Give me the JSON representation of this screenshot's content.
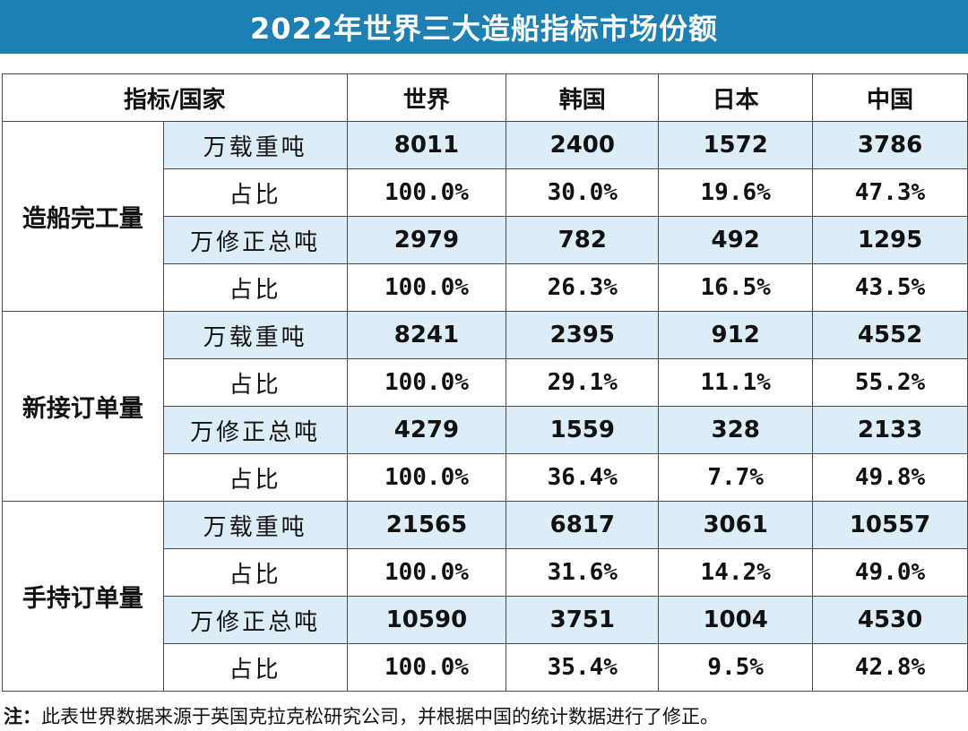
{
  "chart_data": {
    "type": "table",
    "title": "2022年世界三大造船指标市场份额",
    "corner_header": "指标/国家",
    "columns": [
      "世界",
      "韩国",
      "日本",
      "中国"
    ],
    "groups": [
      {
        "name": "造船完工量",
        "rows": [
          {
            "metric": "万载重吨",
            "values": [
              "8011",
              "2400",
              "1572",
              "3786"
            ]
          },
          {
            "metric": "占比",
            "values": [
              "100.0%",
              "30.0%",
              "19.6%",
              "47.3%"
            ]
          },
          {
            "metric": "万修正总吨",
            "values": [
              "2979",
              "782",
              "492",
              "1295"
            ]
          },
          {
            "metric": "占比",
            "values": [
              "100.0%",
              "26.3%",
              "16.5%",
              "43.5%"
            ]
          }
        ]
      },
      {
        "name": "新接订单量",
        "rows": [
          {
            "metric": "万载重吨",
            "values": [
              "8241",
              "2395",
              "912",
              "4552"
            ]
          },
          {
            "metric": "占比",
            "values": [
              "100.0%",
              "29.1%",
              "11.1%",
              "55.2%"
            ]
          },
          {
            "metric": "万修正总吨",
            "values": [
              "4279",
              "1559",
              "328",
              "2133"
            ]
          },
          {
            "metric": "占比",
            "values": [
              "100.0%",
              "36.4%",
              "7.7%",
              "49.8%"
            ]
          }
        ]
      },
      {
        "name": "手持订单量",
        "rows": [
          {
            "metric": "万载重吨",
            "values": [
              "21565",
              "6817",
              "3061",
              "10557"
            ]
          },
          {
            "metric": "占比",
            "values": [
              "100.0%",
              "31.6%",
              "14.2%",
              "49.0%"
            ]
          },
          {
            "metric": "万修正总吨",
            "values": [
              "10590",
              "3751",
              "1004",
              "4530"
            ]
          },
          {
            "metric": "占比",
            "values": [
              "100.0%",
              "35.4%",
              "9.5%",
              "42.8%"
            ]
          }
        ]
      }
    ],
    "note_label": "注：",
    "note": "此表世界数据来源于英国克拉克松研究公司，并根据中国的统计数据进行了修正。"
  },
  "colors": {
    "title_bg": "#1e7fb3",
    "row_shade": "#dcedf7"
  }
}
